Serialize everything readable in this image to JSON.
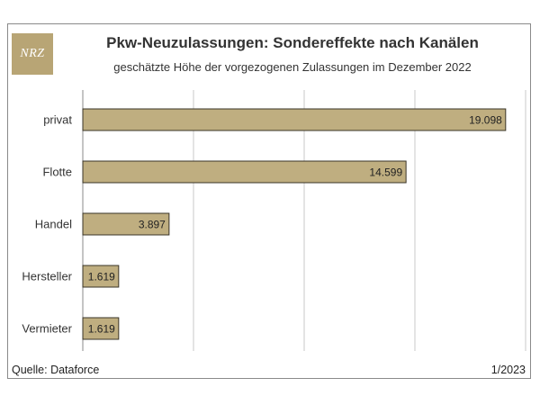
{
  "header": {
    "logo_text": "NRZ",
    "title": "Pkw-Neuzulassungen: Sondereffekte nach Kanälen",
    "subtitle": "geschätzte Höhe der vorgezogenen Zulassungen im Dezember 2022"
  },
  "footer": {
    "source": "Quelle: Dataforce",
    "date": "1/2023"
  },
  "colors": {
    "bar_fill": "#bfae80",
    "bar_stroke": "#3a3427",
    "gridline": "#c8c8c8",
    "logo": "#b8a575"
  },
  "chart_data": {
    "type": "bar",
    "orientation": "horizontal",
    "title": "Pkw-Neuzulassungen: Sondereffekte nach Kanälen",
    "subtitle": "geschätzte Höhe der vorgezogenen Zulassungen im Dezember 2022",
    "categories": [
      "privat",
      "Flotte",
      "Handel",
      "Hersteller",
      "Vermieter"
    ],
    "values": [
      19098,
      14599,
      3897,
      1619,
      1619
    ],
    "value_labels": [
      "19.098",
      "14.599",
      "3.897",
      "1.619",
      "1.619"
    ],
    "xlim": [
      0,
      20000
    ],
    "grid": true,
    "xlabel": "",
    "ylabel": ""
  }
}
